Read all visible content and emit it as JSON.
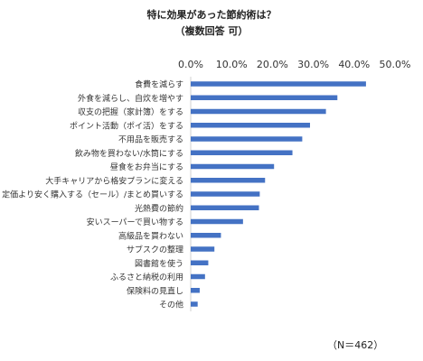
{
  "chart_data": {
    "type": "bar",
    "orientation": "horizontal",
    "title": "特に効果があった節約術は？",
    "subtitle": "（複数回答 可）",
    "note": "（N＝462）",
    "xlim": [
      0,
      50
    ],
    "x_ticks": [
      "0.0%",
      "10.0%",
      "20.0%",
      "30.0%",
      "40.0%",
      "50.0%"
    ],
    "x_tick_values": [
      0,
      10,
      20,
      30,
      40,
      50
    ],
    "axis_position": "top",
    "grid": false,
    "bar_color": "#4472C4",
    "categories": [
      "食費を減らす",
      "外食を減らし、自炊を増やす",
      "収支の把握（家計簿）をする",
      "ポイント活動（ポイ活）をする",
      "不用品を販売する",
      "飲み物を買わない/水筒にする",
      "昼食をお弁当にする",
      "大手キャリアから格安プランに変える",
      "定価より安く購入する（セール）/まとめ買いする",
      "光熱費の節約",
      "安いスーパーで買い物する",
      "高級品を買わない",
      "サブスクの整理",
      "図書館を使う",
      "ふるさと納税の利用",
      "保険料の見直し",
      "その他"
    ],
    "values": [
      42.9,
      35.9,
      33.1,
      29.2,
      27.3,
      24.9,
      20.4,
      18.2,
      16.9,
      16.7,
      12.8,
      7.4,
      5.8,
      4.3,
      3.5,
      2.2,
      1.7
    ]
  }
}
